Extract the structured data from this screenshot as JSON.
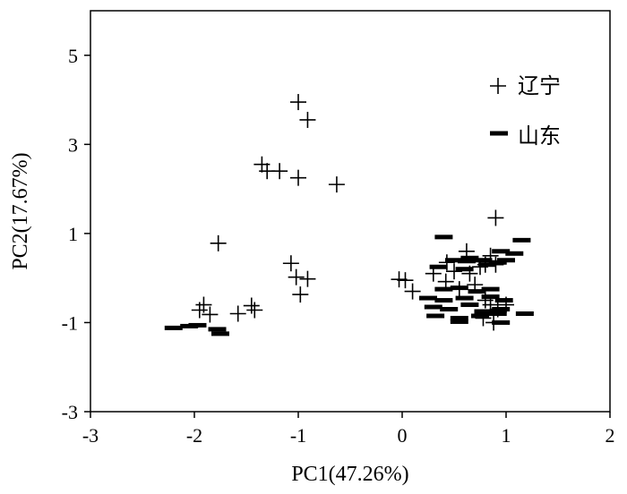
{
  "chart_data": {
    "type": "scatter",
    "title": "",
    "xlabel": "PC1(47.26%)",
    "ylabel": "PC2(17.67%)",
    "xlim": [
      -3,
      2
    ],
    "ylim": [
      -3,
      6
    ],
    "xticks": [
      -3,
      -2,
      -1,
      0,
      1,
      2
    ],
    "yticks": [
      -3,
      -1,
      1,
      3,
      5
    ],
    "grid": false,
    "legend_position": "top-right",
    "series": [
      {
        "name": "辽宁",
        "marker": "plus",
        "color": "#000000",
        "points": [
          [
            -1.0,
            3.95
          ],
          [
            -0.91,
            3.55
          ],
          [
            -1.35,
            2.55
          ],
          [
            -1.3,
            2.4
          ],
          [
            -1.18,
            2.4
          ],
          [
            -1.0,
            2.25
          ],
          [
            -0.63,
            2.1
          ],
          [
            -1.77,
            0.78
          ],
          [
            -1.07,
            0.33
          ],
          [
            -1.02,
            0.02
          ],
          [
            -0.91,
            -0.02
          ],
          [
            -0.98,
            -0.37
          ],
          [
            -1.91,
            -0.6
          ],
          [
            -1.95,
            -0.72
          ],
          [
            -1.85,
            -0.82
          ],
          [
            -1.45,
            -0.62
          ],
          [
            -1.42,
            -0.72
          ],
          [
            -1.58,
            -0.8
          ],
          [
            -0.03,
            -0.03
          ],
          [
            0.03,
            -0.05
          ],
          [
            0.1,
            -0.3
          ],
          [
            0.3,
            0.1
          ],
          [
            0.43,
            0.35
          ],
          [
            0.5,
            0.15
          ],
          [
            0.42,
            -0.08
          ],
          [
            0.55,
            -0.25
          ],
          [
            0.62,
            0.6
          ],
          [
            0.65,
            0.1
          ],
          [
            0.7,
            -0.15
          ],
          [
            0.75,
            0.25
          ],
          [
            0.8,
            0.3
          ],
          [
            0.85,
            0.5
          ],
          [
            0.9,
            0.3
          ],
          [
            0.9,
            1.35
          ],
          [
            0.85,
            -0.6
          ],
          [
            0.92,
            -0.7
          ],
          [
            1.0,
            -0.6
          ],
          [
            0.78,
            -0.9
          ],
          [
            0.88,
            -1.0
          ],
          [
            0.8,
            -0.5
          ]
        ]
      },
      {
        "name": "山东",
        "marker": "dash",
        "color": "#000000",
        "points": [
          [
            -2.2,
            -1.12
          ],
          [
            -2.05,
            -1.08
          ],
          [
            -1.97,
            -1.06
          ],
          [
            -1.78,
            -1.15
          ],
          [
            -1.75,
            -1.25
          ],
          [
            0.4,
            0.92
          ],
          [
            0.65,
            0.45
          ],
          [
            0.5,
            0.4
          ],
          [
            0.62,
            0.38
          ],
          [
            0.78,
            0.4
          ],
          [
            0.92,
            0.35
          ],
          [
            0.35,
            0.25
          ],
          [
            0.6,
            0.2
          ],
          [
            0.82,
            0.3
          ],
          [
            1.0,
            0.4
          ],
          [
            1.08,
            0.55
          ],
          [
            1.15,
            0.85
          ],
          [
            0.95,
            0.6
          ],
          [
            0.4,
            -0.25
          ],
          [
            0.55,
            -0.22
          ],
          [
            0.72,
            -0.3
          ],
          [
            0.85,
            -0.25
          ],
          [
            0.25,
            -0.45
          ],
          [
            0.4,
            -0.5
          ],
          [
            0.6,
            -0.45
          ],
          [
            0.85,
            -0.42
          ],
          [
            0.98,
            -0.5
          ],
          [
            0.3,
            -0.65
          ],
          [
            0.45,
            -0.7
          ],
          [
            0.65,
            -0.6
          ],
          [
            0.78,
            -0.75
          ],
          [
            0.95,
            -0.7
          ],
          [
            0.32,
            -0.85
          ],
          [
            0.55,
            -0.9
          ],
          [
            0.75,
            -0.85
          ],
          [
            0.92,
            -0.8
          ],
          [
            1.18,
            -0.8
          ],
          [
            0.55,
            -0.98
          ],
          [
            0.95,
            -1.0
          ]
        ]
      }
    ]
  }
}
